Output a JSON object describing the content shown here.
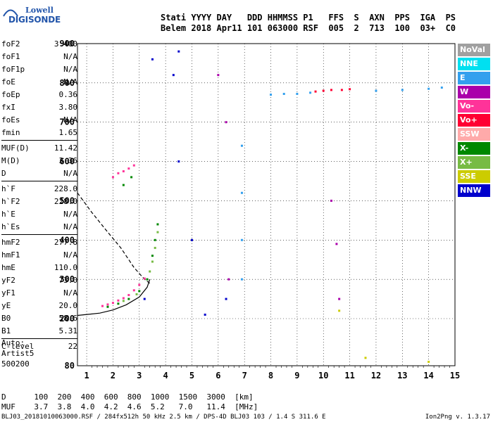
{
  "logo": {
    "line1": "Lowell",
    "line2": "DIGISONDE"
  },
  "header": {
    "line1": "Stati YYYY DAY   DDD HHMMSS P1   FFS  S  AXN  PPS  IGA  PS",
    "line2": "Belem 2018 Apr11 101 063000 RSF  005  2  713  100  03+  C0"
  },
  "params_group1": [
    {
      "label": "foF2",
      "value": "3.400"
    },
    {
      "label": "foF1",
      "value": "N/A"
    },
    {
      "label": "foF1p",
      "value": "N/A"
    },
    {
      "label": "foE",
      "value": "N/A"
    },
    {
      "label": "foEp",
      "value": "0.36"
    },
    {
      "label": "fxI",
      "value": "3.80"
    },
    {
      "label": "foEs",
      "value": "N/A"
    },
    {
      "label": "fmin",
      "value": "1.65"
    }
  ],
  "params_group2": [
    {
      "label": "MUF(D)",
      "value": "11.42"
    },
    {
      "label": "M(D)",
      "value": "3.36"
    },
    {
      "label": "D",
      "value": "N/A"
    }
  ],
  "params_group3": [
    {
      "label": "h`F",
      "value": "228.0"
    },
    {
      "label": "h`F2",
      "value": "228.0"
    },
    {
      "label": "h`E",
      "value": "N/A"
    },
    {
      "label": "h`Es",
      "value": "N/A"
    }
  ],
  "params_group4": [
    {
      "label": "hmF2",
      "value": "277.8"
    },
    {
      "label": "hmF1",
      "value": "N/A"
    },
    {
      "label": "hmE",
      "value": "110.0"
    },
    {
      "label": "yF2",
      "value": "73.0"
    },
    {
      "label": "yF1",
      "value": "N/A"
    },
    {
      "label": "yE",
      "value": "20.0"
    },
    {
      "label": "B0",
      "value": "58.6"
    },
    {
      "label": "B1",
      "value": "5.31"
    }
  ],
  "params_group5": [
    {
      "label": "C-level",
      "value": "22"
    }
  ],
  "auto_block": [
    "Auto:",
    "Artist5",
    "500200"
  ],
  "legend": [
    {
      "label": "NoVal",
      "color": "#a0a0a0"
    },
    {
      "label": "NNE",
      "color": "#00e0f0"
    },
    {
      "label": "E",
      "color": "#33a0ee"
    },
    {
      "label": "W",
      "color": "#aa00aa"
    },
    {
      "label": "Vo-",
      "color": "#ff3399"
    },
    {
      "label": "Vo+",
      "color": "#ff0033"
    },
    {
      "label": "SSW",
      "color": "#ffaaaa"
    },
    {
      "label": "X-",
      "color": "#008800"
    },
    {
      "label": "X+",
      "color": "#77bb44"
    },
    {
      "label": "SSE",
      "color": "#cccc00"
    },
    {
      "label": "NNW",
      "color": "#0000cc"
    }
  ],
  "muf_table": {
    "row1": "D      100  200  400  600  800  1000  1500  3000  [km]",
    "row2": "MUF    3.7  3.8  4.0  4.2  4.6  5.2   7.0   11.4  [MHz]"
  },
  "footer": "BLJ03_20181010063000.RSF / 284fx512h 50 kHz 2.5 km / DPS-4D BLJ03 103 / 1.4 S 311.6 E",
  "version": "Ion2Png v. 1.3.17",
  "chart_data": {
    "type": "scatter",
    "title": "",
    "xlabel": "Frequency [MHz]",
    "ylabel": "Virtual height [km]",
    "xlim": [
      0.65,
      15.0
    ],
    "ylim": [
      80,
      900
    ],
    "xticks": [
      1,
      2,
      3,
      4,
      5,
      6,
      7,
      8,
      9,
      10,
      11,
      12,
      13,
      14,
      15
    ],
    "yticks": [
      80,
      200,
      300,
      400,
      500,
      600,
      700,
      800,
      900
    ],
    "grid": true,
    "series": [
      {
        "name": "Vo-",
        "color": "#ff3399",
        "points": [
          [
            1.6,
            232
          ],
          [
            1.8,
            236
          ],
          [
            2.0,
            240
          ],
          [
            2.2,
            246
          ],
          [
            2.4,
            252
          ],
          [
            2.6,
            260
          ],
          [
            2.8,
            272
          ],
          [
            3.0,
            286
          ],
          [
            3.2,
            302
          ],
          [
            2.0,
            560
          ],
          [
            2.2,
            570
          ],
          [
            2.4,
            575
          ],
          [
            2.6,
            582
          ],
          [
            2.8,
            590
          ]
        ]
      },
      {
        "name": "X-",
        "color": "#008800",
        "points": [
          [
            1.8,
            230
          ],
          [
            2.2,
            238
          ],
          [
            2.6,
            250
          ],
          [
            3.0,
            270
          ],
          [
            3.3,
            300
          ],
          [
            3.5,
            360
          ],
          [
            3.6,
            400
          ],
          [
            3.7,
            440
          ],
          [
            2.4,
            540
          ],
          [
            2.7,
            560
          ]
        ]
      },
      {
        "name": "X+",
        "color": "#77bb44",
        "points": [
          [
            2.4,
            245
          ],
          [
            2.9,
            262
          ],
          [
            3.4,
            320
          ],
          [
            3.6,
            380
          ],
          [
            3.7,
            420
          ],
          [
            3.5,
            345
          ]
        ]
      },
      {
        "name": "E",
        "color": "#33a0ee",
        "points": [
          [
            6.9,
            300
          ],
          [
            6.9,
            400
          ],
          [
            6.9,
            520
          ],
          [
            6.9,
            640
          ],
          [
            8.0,
            770
          ],
          [
            8.5,
            772
          ],
          [
            9.0,
            772
          ],
          [
            9.5,
            775
          ],
          [
            12.0,
            780
          ],
          [
            13.0,
            782
          ],
          [
            14.0,
            785
          ],
          [
            14.5,
            788
          ]
        ]
      },
      {
        "name": "Vo+",
        "color": "#ff0033",
        "points": [
          [
            9.7,
            778
          ],
          [
            10.0,
            780
          ],
          [
            10.3,
            782
          ],
          [
            10.7,
            782
          ],
          [
            11.0,
            784
          ]
        ]
      },
      {
        "name": "W",
        "color": "#aa00aa",
        "points": [
          [
            6.0,
            820
          ],
          [
            6.3,
            700
          ],
          [
            6.4,
            300
          ],
          [
            10.3,
            500
          ],
          [
            10.5,
            390
          ],
          [
            10.6,
            250
          ]
        ]
      },
      {
        "name": "NNW",
        "color": "#0000cc",
        "points": [
          [
            3.2,
            250
          ],
          [
            3.5,
            860
          ],
          [
            4.3,
            820
          ],
          [
            4.5,
            880
          ],
          [
            4.5,
            600
          ],
          [
            5.0,
            400
          ],
          [
            5.5,
            210
          ],
          [
            6.3,
            250
          ]
        ]
      },
      {
        "name": "SSE",
        "color": "#cccc00",
        "points": [
          [
            10.6,
            220
          ],
          [
            11.6,
            100
          ],
          [
            14.0,
            90
          ]
        ]
      }
    ],
    "curves": [
      {
        "name": "profile-solid",
        "points": [
          [
            0.65,
            208
          ],
          [
            1.5,
            214
          ],
          [
            2.0,
            222
          ],
          [
            2.5,
            235
          ],
          [
            3.0,
            255
          ],
          [
            3.3,
            280
          ],
          [
            3.4,
            300
          ]
        ]
      },
      {
        "name": "profile-dashed",
        "points": [
          [
            0.65,
            520
          ],
          [
            1.2,
            470
          ],
          [
            1.8,
            420
          ],
          [
            2.3,
            380
          ],
          [
            2.8,
            330
          ],
          [
            3.2,
            300
          ],
          [
            3.4,
            290
          ]
        ]
      }
    ]
  }
}
